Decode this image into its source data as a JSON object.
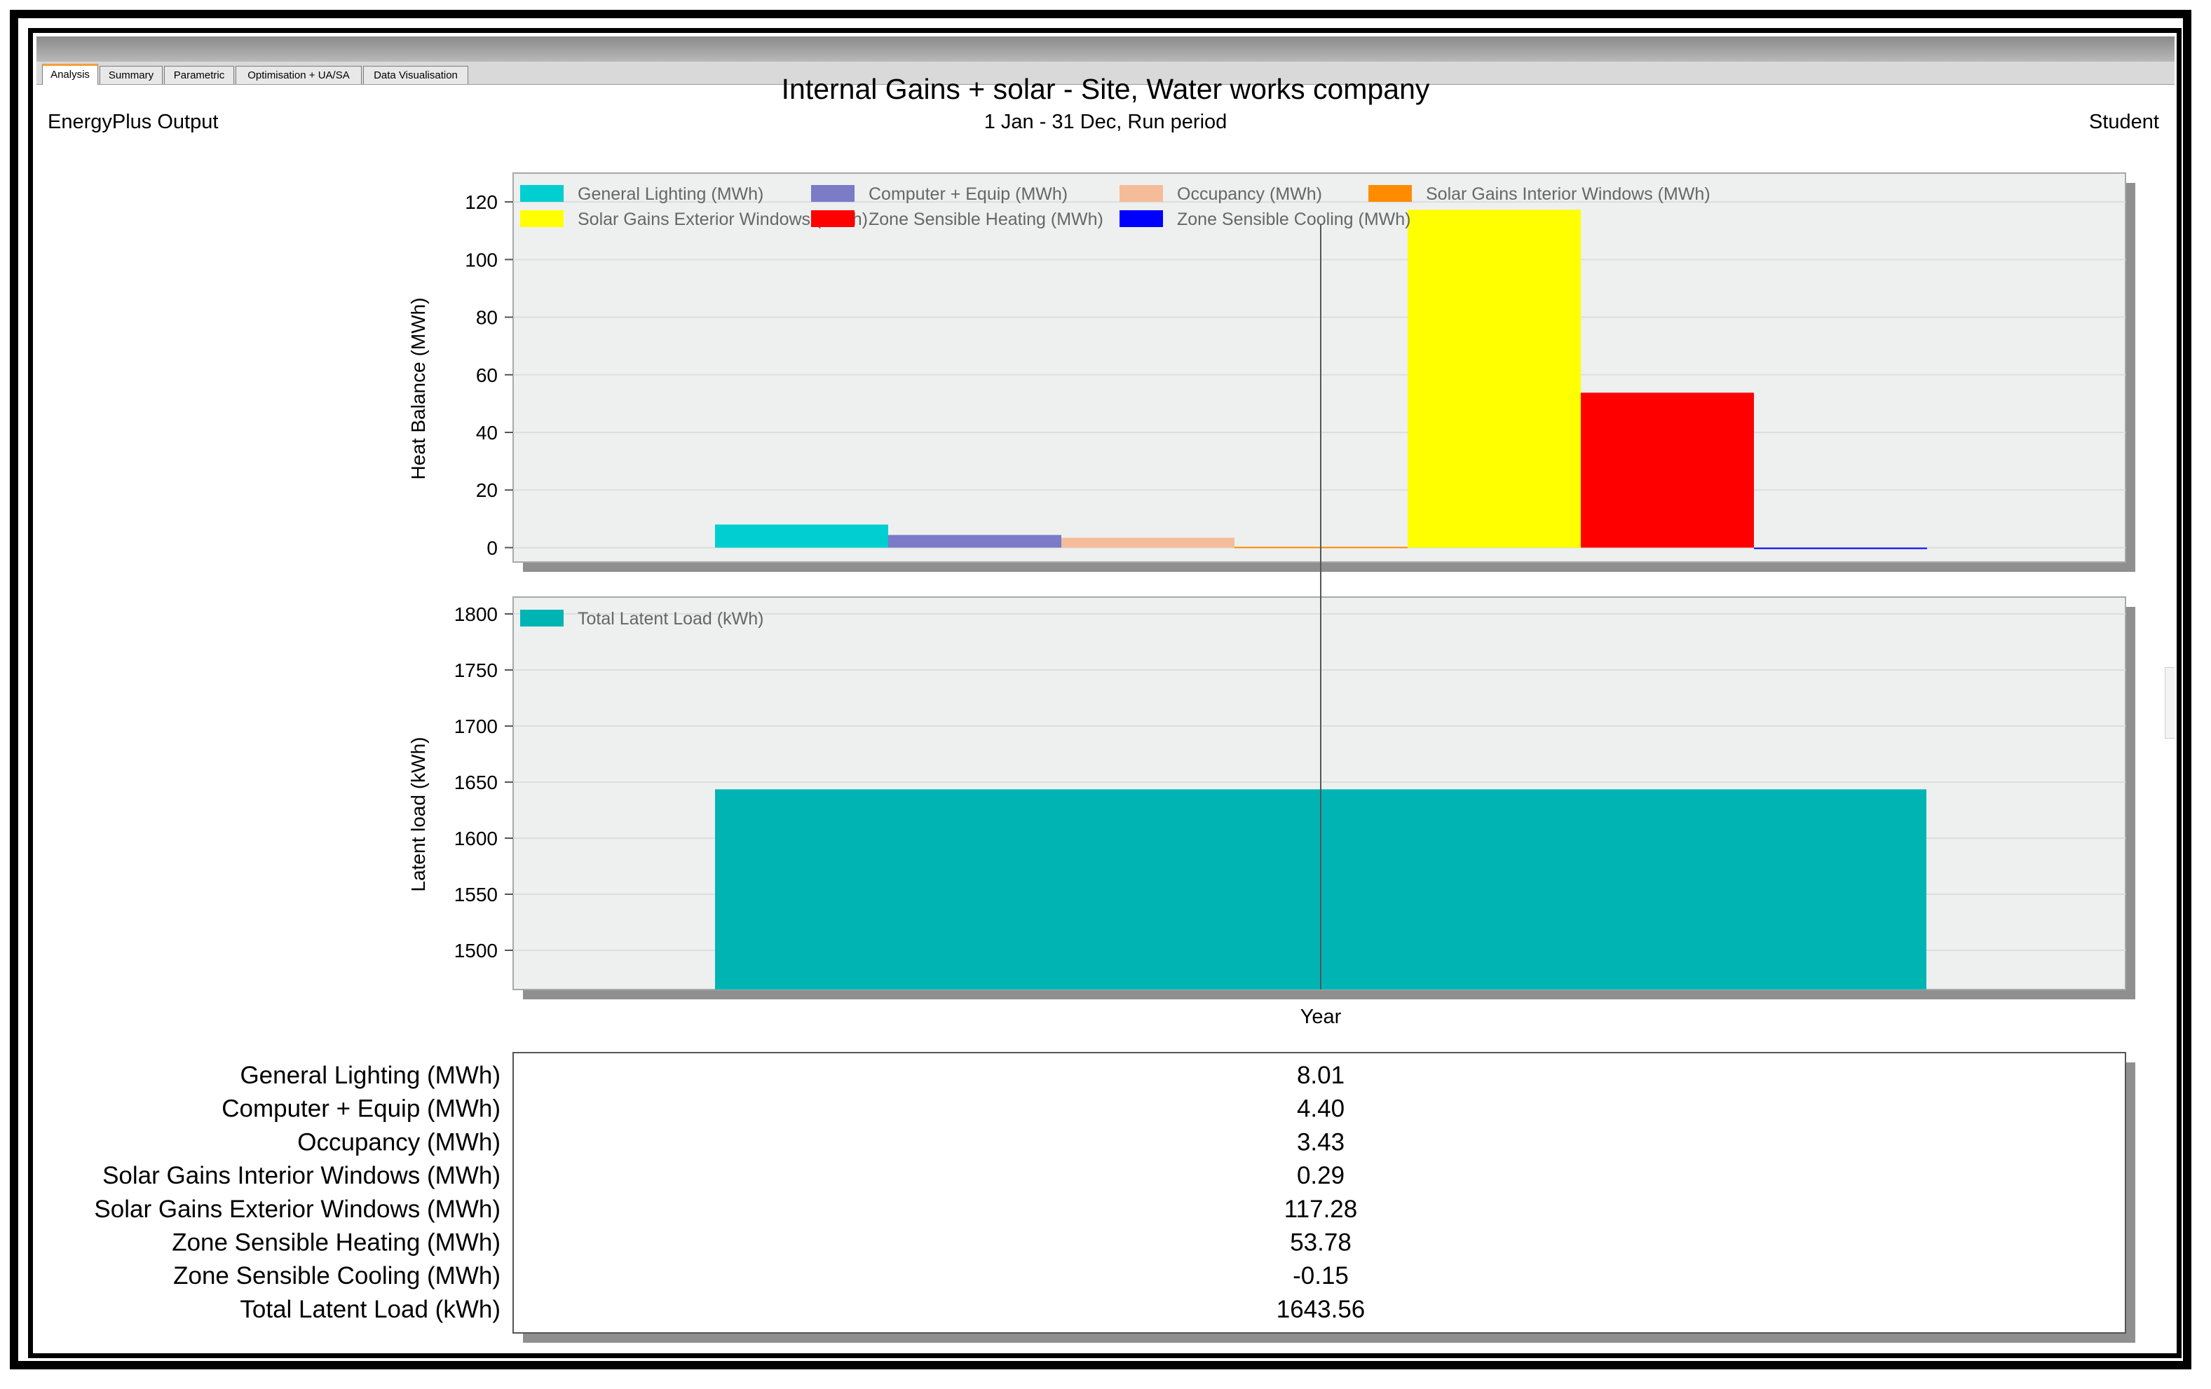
{
  "tabs": [
    "Analysis",
    "Summary",
    "Parametric",
    "Optimisation + UA/SA",
    "Data Visualisation"
  ],
  "header": {
    "title": "Internal Gains + solar - Site, Water works company",
    "subtitle": "1 Jan - 31 Dec, Run period",
    "left": "EnergyPlus Output",
    "right": "Student"
  },
  "chart_data": [
    {
      "type": "bar",
      "ylabel": "Heat Balance (MWh)",
      "ylim": [
        -5,
        130
      ],
      "yticks": [
        0,
        20,
        40,
        60,
        80,
        100,
        120
      ],
      "grid": true,
      "legend": "top-left",
      "series": [
        {
          "name": "General Lighting (MWh)",
          "values": [
            8.01
          ],
          "color": "#00CED1"
        },
        {
          "name": "Computer + Equip (MWh)",
          "values": [
            4.4
          ],
          "color": "#7B7BC8"
        },
        {
          "name": "Occupancy (MWh)",
          "values": [
            3.43
          ],
          "color": "#F5BC9A"
        },
        {
          "name": "Solar Gains Interior Windows (MWh)",
          "values": [
            0.29
          ],
          "color": "#FF8C00"
        },
        {
          "name": "Solar Gains Exterior Windows (MWh)",
          "values": [
            117.28
          ],
          "color": "#FFFF00"
        },
        {
          "name": "Zone Sensible Heating (MWh)",
          "values": [
            53.78
          ],
          "color": "#FF0000"
        },
        {
          "name": "Zone Sensible Cooling (MWh)",
          "values": [
            -0.15
          ],
          "color": "#0000FF"
        }
      ]
    },
    {
      "type": "bar",
      "ylabel": "Latent load (kWh)",
      "xlabel": "Year",
      "categories": [
        "Year"
      ],
      "ylim": [
        1465,
        1815
      ],
      "yticks": [
        1500,
        1550,
        1600,
        1650,
        1700,
        1750,
        1800
      ],
      "grid": true,
      "legend": "top-left",
      "series": [
        {
          "name": "Total Latent Load (kWh)",
          "values": [
            1643.56
          ],
          "color": "#00B4B4"
        }
      ]
    }
  ],
  "summary_table": [
    {
      "label": "General Lighting (MWh)",
      "value": "8.01"
    },
    {
      "label": "Computer + Equip (MWh)",
      "value": "4.40"
    },
    {
      "label": "Occupancy (MWh)",
      "value": "3.43"
    },
    {
      "label": "Solar Gains Interior Windows (MWh)",
      "value": "0.29"
    },
    {
      "label": "Solar Gains Exterior Windows (MWh)",
      "value": "117.28"
    },
    {
      "label": "Zone Sensible Heating (MWh)",
      "value": "53.78"
    },
    {
      "label": "Zone Sensible Cooling (MWh)",
      "value": "-0.15"
    },
    {
      "label": "Total Latent Load (kWh)",
      "value": "1643.56"
    }
  ]
}
